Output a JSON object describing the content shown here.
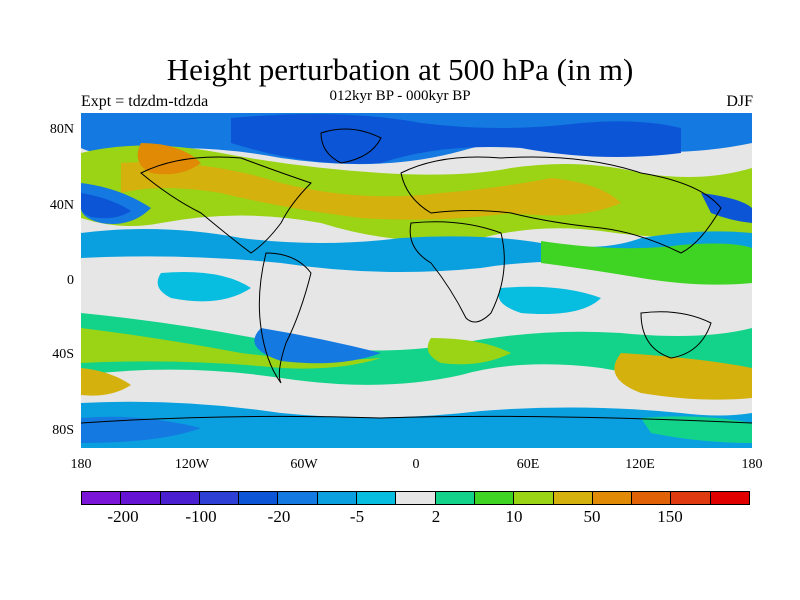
{
  "title": "Height perturbation at 500 hPa (in m)",
  "subtitle": "012kyr BP - 000kyr BP",
  "experiment": "Expt = tdzdm-tdzda",
  "season": "DJF",
  "lat_ticks": [
    "80N",
    "40N",
    "0",
    "40S",
    "80S"
  ],
  "lon_ticks": [
    "180",
    "120W",
    "60W",
    "0",
    "60E",
    "120E",
    "180"
  ],
  "colorbar": {
    "colors": [
      "#7b16d8",
      "#6614d4",
      "#4a1fd0",
      "#2e3fd6",
      "#0b55d6",
      "#1479e0",
      "#0aa0e0",
      "#08bee0",
      "#e6e6e6",
      "#13d38a",
      "#3fd423",
      "#9ad414",
      "#d4b10c",
      "#e08a06",
      "#e06106",
      "#e03a10",
      "#e00000"
    ],
    "labels": [
      "-200",
      "-100",
      "-20",
      "-5",
      "2",
      "10",
      "50",
      "150"
    ]
  },
  "map_colors": {
    "neutral": "#e6e6e6",
    "green": "#13d38a",
    "lime": "#3fd423",
    "yellowgreen": "#9ad414",
    "gold": "#d4b10c",
    "orange": "#e08a06",
    "cyan": "#08bee0",
    "lightblue": "#0aa0e0",
    "blue": "#1479e0",
    "darkblue": "#0b55d6"
  }
}
